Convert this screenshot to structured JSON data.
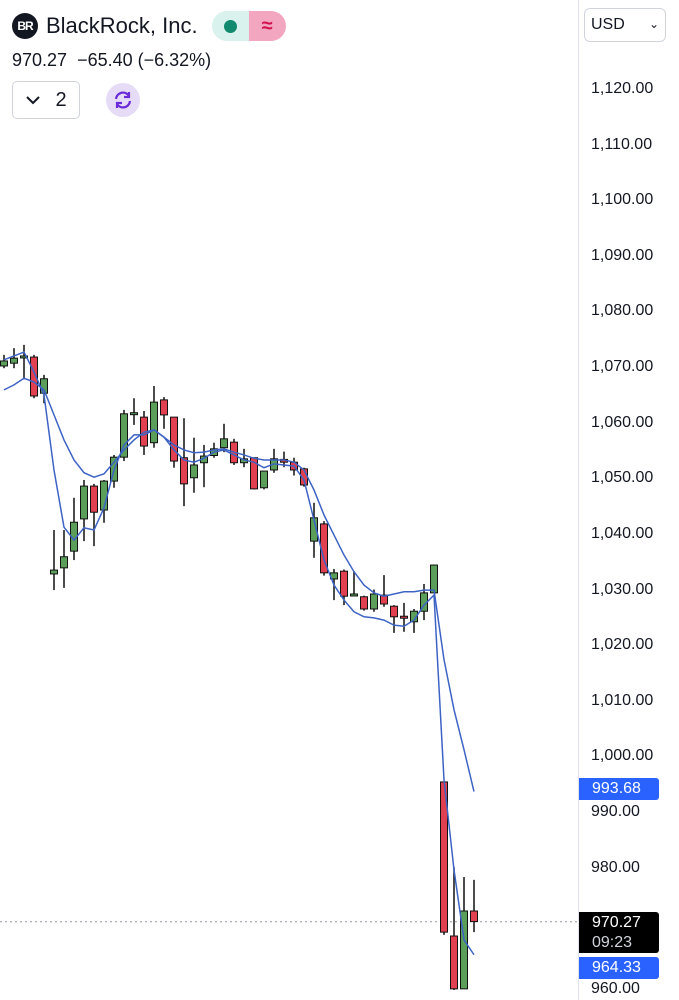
{
  "header": {
    "logo_text": "BR",
    "symbol_name": "BlackRock, Inc.",
    "last_price": "970.27",
    "change": "−65.40 (−6.32%)",
    "interval_count": "2",
    "market_status_icon": "dot-icon",
    "wave_icon": "≈"
  },
  "axis": {
    "currency": "USD",
    "ticks": [
      "1,120.00",
      "1,110.00",
      "1,100.00",
      "1,090.00",
      "1,080.00",
      "1,070.00",
      "1,060.00",
      "1,050.00",
      "1,040.00",
      "1,030.00",
      "1,020.00",
      "1,010.00",
      "1,000.00",
      "990.00",
      "980.00",
      "960.00"
    ],
    "slow_ma_label": "993.68",
    "price_label": "970.27",
    "countdown": "09:23",
    "fast_ma_label": "964.33"
  },
  "colors": {
    "up": "#5a9e5a",
    "down": "#e0404f",
    "ma": "#3d63c4",
    "label_blue": "#2962ff",
    "price_tag": "#000000"
  },
  "chart_data": {
    "type": "candlestick",
    "tick_values": [
      1120,
      1110,
      1100,
      1090,
      1080,
      1070,
      1060,
      1050,
      1040,
      1030,
      1020,
      1010,
      1000,
      990,
      980,
      960
    ],
    "current_price": 970.27,
    "candles": [
      [
        1070.2,
        1072.2,
        1069.8,
        1071.1
      ],
      [
        1070.7,
        1073.4,
        1069.8,
        1071.6
      ],
      [
        1072.0,
        1074.0,
        1068.0,
        1072.0
      ],
      [
        1071.8,
        1072.2,
        1064.4,
        1064.8
      ],
      [
        1065.3,
        1068.6,
        1063.5,
        1067.9
      ],
      [
        1032.8,
        1040.7,
        1029.9,
        1033.5
      ],
      [
        1033.9,
        1040.7,
        1030.3,
        1035.9
      ],
      [
        1036.9,
        1046.5,
        1035.3,
        1042.1
      ],
      [
        1042.7,
        1049.7,
        1038.7,
        1048.6
      ],
      [
        1048.6,
        1049.0,
        1037.8,
        1043.9
      ],
      [
        1044.3,
        1049.7,
        1042.0,
        1049.5
      ],
      [
        1049.5,
        1054.2,
        1048.3,
        1053.8
      ],
      [
        1053.8,
        1062.3,
        1053.1,
        1061.6
      ],
      [
        1061.7,
        1064.4,
        1059.6,
        1061.8
      ],
      [
        1061.0,
        1062.1,
        1054.2,
        1055.8
      ],
      [
        1056.4,
        1066.6,
        1055.5,
        1063.7
      ],
      [
        1064.1,
        1064.6,
        1058.9,
        1061.4
      ],
      [
        1061.0,
        1061.0,
        1051.9,
        1053.1
      ],
      [
        1053.7,
        1060.8,
        1045.0,
        1049.0
      ],
      [
        1050.1,
        1057.3,
        1047.4,
        1052.4
      ],
      [
        1052.8,
        1056.0,
        1048.4,
        1054.0
      ],
      [
        1054.1,
        1056.4,
        1053.7,
        1055.3
      ],
      [
        1055.5,
        1059.8,
        1054.7,
        1057.1
      ],
      [
        1056.5,
        1057.1,
        1052.4,
        1052.8
      ],
      [
        1052.8,
        1055.3,
        1052.0,
        1053.5
      ],
      [
        1053.7,
        1053.7,
        1048.0,
        1048.1
      ],
      [
        1048.3,
        1051.3,
        1048.0,
        1051.3
      ],
      [
        1051.5,
        1055.3,
        1051.0,
        1053.5
      ],
      [
        1053.4,
        1054.8,
        1052.0,
        1052.9
      ],
      [
        1052.9,
        1053.7,
        1050.5,
        1051.5
      ],
      [
        1051.7,
        1051.9,
        1048.5,
        1048.8
      ],
      [
        1038.7,
        1045.6,
        1035.7,
        1042.9
      ],
      [
        1041.8,
        1042.3,
        1032.5,
        1033.0
      ],
      [
        1031.9,
        1033.7,
        1028.1,
        1033.0
      ],
      [
        1033.3,
        1033.6,
        1027.2,
        1028.8
      ],
      [
        1029.2,
        1033.3,
        1028.8,
        1029.2
      ],
      [
        1028.7,
        1028.9,
        1026.2,
        1026.5
      ],
      [
        1026.5,
        1030.0,
        1026.0,
        1029.2
      ],
      [
        1029.0,
        1032.6,
        1026.9,
        1027.4
      ],
      [
        1027.0,
        1027.2,
        1022.2,
        1025.1
      ],
      [
        1025.2,
        1027.6,
        1022.4,
        1024.9
      ],
      [
        1024.2,
        1026.5,
        1022.2,
        1026.1
      ],
      [
        1026.1,
        1031.0,
        1024.5,
        1029.4
      ],
      [
        1029.4,
        1034.5,
        1029.4,
        1034.4
      ],
      [
        995.4,
        995.4,
        967.9,
        968.4
      ],
      [
        967.7,
        980.1,
        958.0,
        958.2
      ],
      [
        958.2,
        978.3,
        958.2,
        972.2
      ],
      [
        972.2,
        977.8,
        968.4,
        970.3
      ]
    ],
    "ma_fast": [
      1071.3,
      1072.0,
      1072.7,
      1069.1,
      1065.0,
      1051.5,
      1041.2,
      1038.9,
      1041.1,
      1040.7,
      1044.7,
      1051.5,
      1056.0,
      1057.8,
      1057.8,
      1058.7,
      1057.4,
      1055.1,
      1053.3,
      1052.9,
      1053.6,
      1054.7,
      1055.1,
      1054.2,
      1053.3,
      1052.9,
      1051.9,
      1052.6,
      1052.4,
      1052.2,
      1049.7,
      1042.5,
      1035.3,
      1030.8,
      1028.1,
      1026.0,
      1025.1,
      1024.9,
      1024.5,
      1023.6,
      1023.4,
      1024.5,
      1027.2,
      1029.0,
      995.8,
      979.6,
      967.0,
      964.33
    ],
    "ma_slow": [
      1065.9,
      1066.8,
      1068.0,
      1067.3,
      1065.9,
      1061.4,
      1056.9,
      1053.3,
      1051.0,
      1050.2,
      1050.8,
      1052.9,
      1055.1,
      1056.9,
      1058.3,
      1058.7,
      1057.4,
      1056.0,
      1055.1,
      1054.6,
      1054.7,
      1055.1,
      1055.3,
      1054.7,
      1054.2,
      1053.6,
      1053.3,
      1053.3,
      1053.3,
      1052.9,
      1051.5,
      1047.9,
      1043.4,
      1039.8,
      1036.2,
      1033.2,
      1030.8,
      1029.4,
      1028.8,
      1029.2,
      1029.6,
      1029.6,
      1029.9,
      1029.9,
      1017.4,
      1008.4,
      1001.2,
      993.68
    ]
  }
}
